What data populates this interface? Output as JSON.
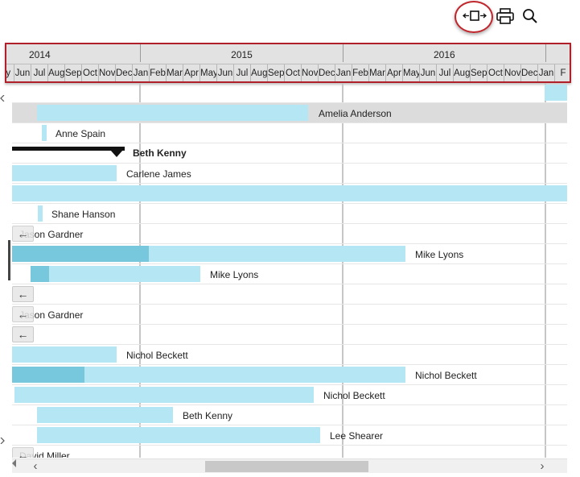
{
  "toolbar": {
    "fit_icon": "fit-to-screen-icon",
    "print_icon": "print-icon",
    "search_icon": "search-icon"
  },
  "timescale": {
    "years": [
      "2014",
      "2015",
      "2016"
    ],
    "months": [
      "ay",
      "Jun",
      "Jul",
      "Aug",
      "Sep",
      "Oct",
      "Nov",
      "Dec",
      "Jan",
      "Feb",
      "Mar",
      "Apr",
      "May",
      "Jun",
      "Jul",
      "Aug",
      "Sep",
      "Oct",
      "Nov",
      "Dec",
      "Jan",
      "Feb",
      "Mar",
      "Apr",
      "May",
      "Jun",
      "Jul",
      "Aug",
      "Sep",
      "Oct",
      "Nov",
      "Dec",
      "Jan",
      "F"
    ]
  },
  "tasks": [
    {
      "label": "Amelia Anderson"
    },
    {
      "label": "Anne Spain"
    },
    {
      "label": "Beth Kenny"
    },
    {
      "label": "Carlene James"
    },
    {
      "label": "Shane Hanson"
    },
    {
      "label": "Jason Gardner"
    },
    {
      "label": "Mike Lyons"
    },
    {
      "label": "Mike Lyons"
    },
    {
      "label": "Jason Gardner"
    },
    {
      "label": "Nichol Beckett"
    },
    {
      "label": "Nichol Beckett"
    },
    {
      "label": "Nichol Beckett"
    },
    {
      "label": "Beth Kenny"
    },
    {
      "label": "Lee Shearer"
    },
    {
      "label": "David Miller"
    }
  ],
  "colors": {
    "bar": "#b4e6f3",
    "progress": "#78c8dd",
    "summary": "#111111",
    "highlight": "#c0272d",
    "header_border": "#b0202a"
  }
}
